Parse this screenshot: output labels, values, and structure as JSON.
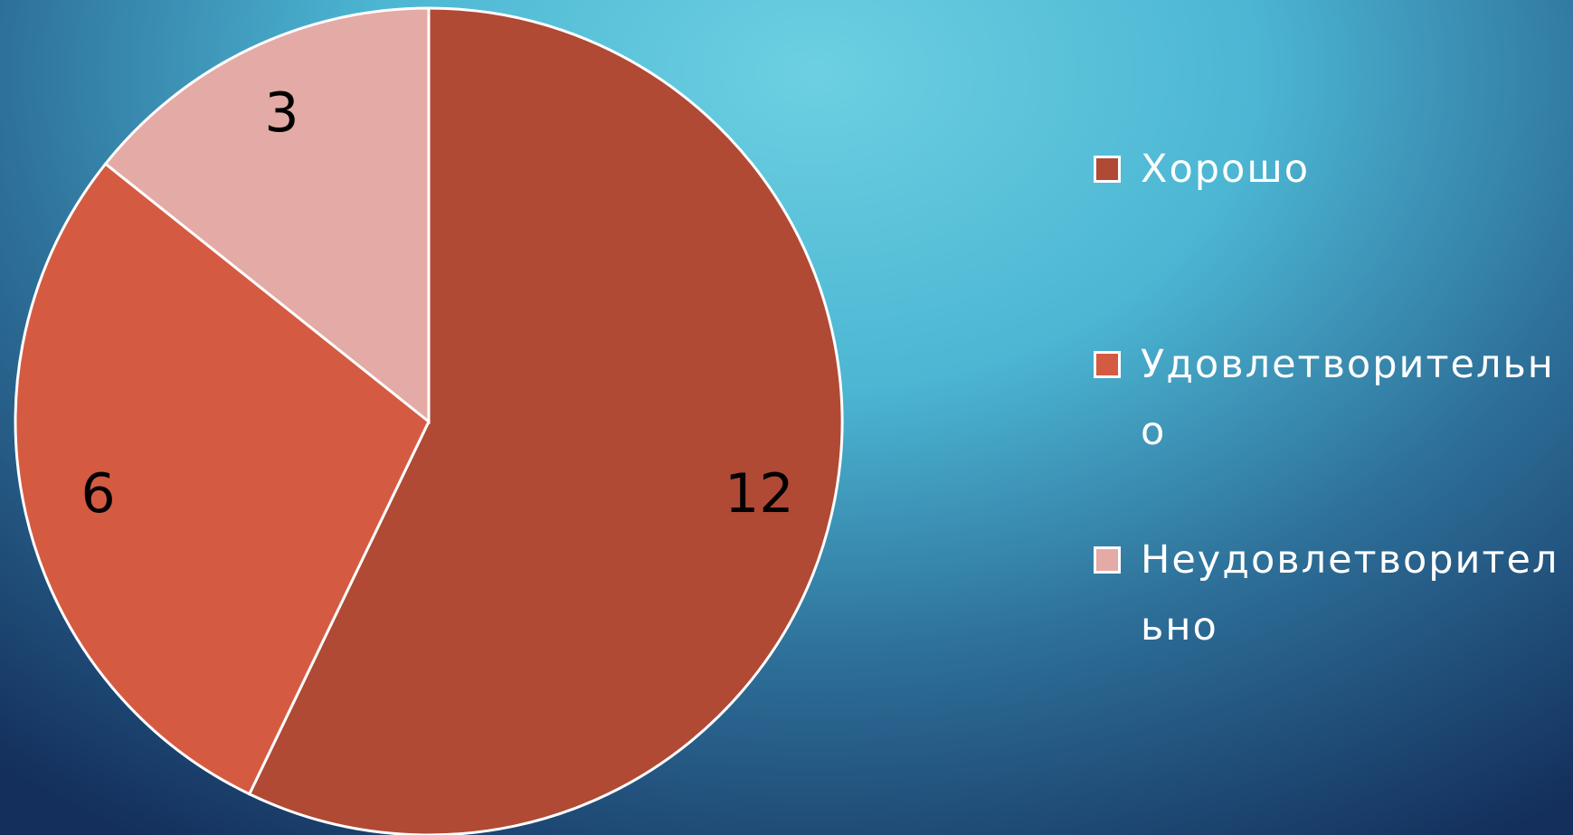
{
  "chart_data": {
    "type": "pie",
    "categories": [
      "Хорошо",
      "Удовлетворительно",
      "Неудовлетворительно"
    ],
    "values": [
      12,
      6,
      3
    ],
    "colors": [
      "#b04a34",
      "#d45b42",
      "#e4aaa6"
    ]
  }
}
